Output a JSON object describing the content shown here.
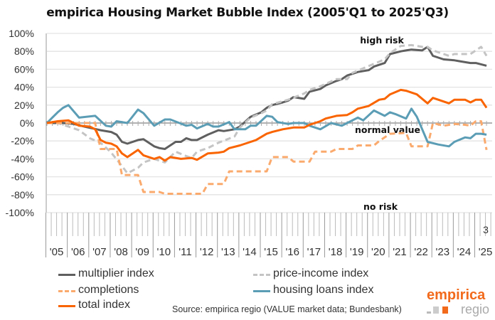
{
  "chart_data": {
    "type": "line",
    "title": "empirica Housing Market Bubble Index (2005'Q1 to 2025'Q3)",
    "xlim": [
      2005.0,
      2025.5
    ],
    "ylim": [
      -100,
      100
    ],
    "y_ticks": [
      "100%",
      "80%",
      "60%",
      "40%",
      "20%",
      "0%",
      "-20%",
      "-40%",
      "-60%",
      "-80%",
      "-100%"
    ],
    "x_ticks": [
      "'05",
      "'06",
      "'07",
      "'08",
      "'09",
      "'10",
      "'11",
      "'12",
      "'13",
      "'14",
      "'15",
      "'16",
      "'17",
      "'18",
      "'19",
      "'20",
      "'21",
      "'22",
      "'23",
      "'24",
      "'25"
    ],
    "last_quarter_label": "3",
    "grid": true,
    "legend_position": "bottom",
    "annotations": {
      "high": "high risk",
      "normal": "normal value",
      "low": "no risk"
    },
    "series": [
      {
        "name": "multiplier index",
        "color": "#5f5f5f",
        "dash": false,
        "points": [
          [
            2005,
            0
          ],
          [
            2005.75,
            0
          ],
          [
            2006.25,
            -1
          ],
          [
            2006.75,
            -4
          ],
          [
            2007.5,
            -8
          ],
          [
            2008,
            -10
          ],
          [
            2008.25,
            -13
          ],
          [
            2008.5,
            -21
          ],
          [
            2008.75,
            -23
          ],
          [
            2009.25,
            -19
          ],
          [
            2009.5,
            -18
          ],
          [
            2010,
            -26
          ],
          [
            2010.25,
            -28
          ],
          [
            2010.5,
            -29
          ],
          [
            2011,
            -21
          ],
          [
            2011.25,
            -21
          ],
          [
            2011.5,
            -17
          ],
          [
            2011.75,
            -19
          ],
          [
            2012,
            -19
          ],
          [
            2012.5,
            -13
          ],
          [
            2013,
            -8
          ],
          [
            2013.25,
            -9
          ],
          [
            2013.75,
            -7
          ],
          [
            2014,
            -4
          ],
          [
            2014.5,
            7
          ],
          [
            2015,
            12
          ],
          [
            2015.25,
            17
          ],
          [
            2015.5,
            20
          ],
          [
            2016,
            23
          ],
          [
            2016.25,
            25
          ],
          [
            2016.5,
            29
          ],
          [
            2017,
            27
          ],
          [
            2017.25,
            35
          ],
          [
            2017.75,
            38
          ],
          [
            2018,
            42
          ],
          [
            2018.5,
            47
          ],
          [
            2018.75,
            49
          ],
          [
            2019,
            53
          ],
          [
            2019.5,
            57
          ],
          [
            2020,
            59
          ],
          [
            2020.25,
            63
          ],
          [
            2020.75,
            67
          ],
          [
            2021,
            77
          ],
          [
            2021.5,
            80
          ],
          [
            2021.75,
            81
          ],
          [
            2022,
            82
          ],
          [
            2022.5,
            81
          ],
          [
            2022.75,
            85
          ],
          [
            2023,
            75
          ],
          [
            2023.5,
            71
          ],
          [
            2024,
            70
          ],
          [
            2024.25,
            69
          ],
          [
            2024.75,
            67
          ],
          [
            2025,
            67
          ],
          [
            2025.5,
            64
          ]
        ]
      },
      {
        "name": "price-income index",
        "color": "#c4c4c4",
        "dash": true,
        "points": [
          [
            2005,
            0
          ],
          [
            2005.5,
            0
          ],
          [
            2006,
            -4
          ],
          [
            2006.5,
            -8
          ],
          [
            2007,
            -17
          ],
          [
            2007.5,
            -22
          ],
          [
            2008,
            -33
          ],
          [
            2008.5,
            -48
          ],
          [
            2008.75,
            -56
          ],
          [
            2009.25,
            -50
          ],
          [
            2009.5,
            -44
          ],
          [
            2010,
            -40
          ],
          [
            2010.5,
            -44
          ],
          [
            2011,
            -32
          ],
          [
            2011.5,
            -37
          ],
          [
            2011.75,
            -39
          ],
          [
            2012,
            -32
          ],
          [
            2012.5,
            -28
          ],
          [
            2013,
            -22
          ],
          [
            2013.75,
            -15
          ],
          [
            2014,
            -5
          ],
          [
            2014.5,
            6
          ],
          [
            2015,
            11
          ],
          [
            2015.25,
            14
          ],
          [
            2015.5,
            21
          ],
          [
            2016.25,
            26
          ],
          [
            2017,
            33
          ],
          [
            2017.25,
            37
          ],
          [
            2017.75,
            41
          ],
          [
            2018.5,
            49
          ],
          [
            2019,
            49
          ],
          [
            2019.25,
            56
          ],
          [
            2019.75,
            61
          ],
          [
            2020.25,
            66
          ],
          [
            2020.75,
            71
          ],
          [
            2021,
            78
          ],
          [
            2021.5,
            86
          ],
          [
            2022,
            87
          ],
          [
            2022.5,
            85
          ],
          [
            2022.75,
            85
          ],
          [
            2023,
            81
          ],
          [
            2023.75,
            75
          ],
          [
            2024,
            77
          ],
          [
            2024.75,
            77
          ],
          [
            2025,
            81
          ],
          [
            2025.25,
            85
          ],
          [
            2025.5,
            75
          ]
        ]
      },
      {
        "name": "completions",
        "color": "#fbaa6e",
        "dash": true,
        "points": [
          [
            2005,
            0
          ],
          [
            2007.25,
            0
          ],
          [
            2007.5,
            -29
          ],
          [
            2008.25,
            -29
          ],
          [
            2008.5,
            -58
          ],
          [
            2009.25,
            -58
          ],
          [
            2009.5,
            -77
          ],
          [
            2010.25,
            -77
          ],
          [
            2010.5,
            -79
          ],
          [
            2012.25,
            -79
          ],
          [
            2012.5,
            -68
          ],
          [
            2013.25,
            -68
          ],
          [
            2013.5,
            -54
          ],
          [
            2015.25,
            -54
          ],
          [
            2015.5,
            -38
          ],
          [
            2016.25,
            -38
          ],
          [
            2016.5,
            -43
          ],
          [
            2017.25,
            -43
          ],
          [
            2017.5,
            -32
          ],
          [
            2018.25,
            -32
          ],
          [
            2018.5,
            -29
          ],
          [
            2019.25,
            -29
          ],
          [
            2019.5,
            -25
          ],
          [
            2020.25,
            -25
          ],
          [
            2020.5,
            -20
          ],
          [
            2021,
            -12
          ],
          [
            2021.75,
            -11
          ],
          [
            2022,
            -26
          ],
          [
            2022.75,
            -26
          ],
          [
            2023,
            0
          ],
          [
            2023.5,
            -3
          ],
          [
            2024,
            -1
          ],
          [
            2024.5,
            -2
          ],
          [
            2024.75,
            -3
          ],
          [
            2025,
            2
          ],
          [
            2025.25,
            2
          ],
          [
            2025.5,
            -30
          ]
        ]
      },
      {
        "name": "housing loans index",
        "color": "#5b9db5",
        "dash": false,
        "points": [
          [
            2005,
            0
          ],
          [
            2005.25,
            6
          ],
          [
            2005.5,
            12
          ],
          [
            2005.75,
            17
          ],
          [
            2006,
            20
          ],
          [
            2006.5,
            6
          ],
          [
            2007.25,
            8
          ],
          [
            2007.75,
            -3
          ],
          [
            2008,
            -4
          ],
          [
            2008.25,
            2
          ],
          [
            2008.75,
            0
          ],
          [
            2009.25,
            15
          ],
          [
            2009.5,
            11
          ],
          [
            2010,
            -3
          ],
          [
            2010.5,
            4
          ],
          [
            2010.75,
            4
          ],
          [
            2011.5,
            -3
          ],
          [
            2011.75,
            -2
          ],
          [
            2012,
            -6
          ],
          [
            2012.5,
            -1
          ],
          [
            2012.75,
            -4
          ],
          [
            2013,
            -4
          ],
          [
            2013.5,
            1
          ],
          [
            2013.75,
            -7
          ],
          [
            2014.25,
            -7
          ],
          [
            2014.5,
            -3
          ],
          [
            2014.75,
            -3
          ],
          [
            2015.25,
            8
          ],
          [
            2015.5,
            7
          ],
          [
            2015.75,
            1
          ],
          [
            2016.25,
            -1
          ],
          [
            2016.5,
            0
          ],
          [
            2017,
            0
          ],
          [
            2017.25,
            -3
          ],
          [
            2017.75,
            -7
          ],
          [
            2018.25,
            0
          ],
          [
            2018.75,
            -3
          ],
          [
            2019,
            0
          ],
          [
            2019.5,
            6
          ],
          [
            2019.75,
            3
          ],
          [
            2020.25,
            14
          ],
          [
            2020.75,
            8
          ],
          [
            2021,
            12
          ],
          [
            2021.25,
            10
          ],
          [
            2021.75,
            5
          ],
          [
            2022,
            16
          ],
          [
            2022.25,
            7
          ],
          [
            2022.75,
            -21
          ],
          [
            2023.25,
            -24
          ],
          [
            2023.75,
            -26
          ],
          [
            2024,
            -21
          ],
          [
            2024.5,
            -16
          ],
          [
            2024.75,
            -17
          ],
          [
            2025,
            -12
          ],
          [
            2025.25,
            -12
          ],
          [
            2025.5,
            -13
          ]
        ]
      },
      {
        "name": "total index",
        "color": "#fa6400",
        "dash": false,
        "points": [
          [
            2005,
            0
          ],
          [
            2005.5,
            2
          ],
          [
            2006,
            3
          ],
          [
            2006.5,
            -3
          ],
          [
            2007,
            -4
          ],
          [
            2007.25,
            -7
          ],
          [
            2007.5,
            -19
          ],
          [
            2007.75,
            -22
          ],
          [
            2008,
            -23
          ],
          [
            2008.25,
            -26
          ],
          [
            2008.5,
            -34
          ],
          [
            2008.75,
            -38
          ],
          [
            2009.25,
            -30
          ],
          [
            2009.5,
            -36
          ],
          [
            2010,
            -40
          ],
          [
            2010.25,
            -38
          ],
          [
            2010.5,
            -42
          ],
          [
            2010.75,
            -38
          ],
          [
            2011.25,
            -40
          ],
          [
            2011.75,
            -39
          ],
          [
            2012,
            -41
          ],
          [
            2012.5,
            -34
          ],
          [
            2013,
            -33
          ],
          [
            2013.25,
            -32
          ],
          [
            2013.5,
            -28
          ],
          [
            2014,
            -25
          ],
          [
            2014.5,
            -21
          ],
          [
            2014.75,
            -19
          ],
          [
            2015.25,
            -12
          ],
          [
            2015.5,
            -10
          ],
          [
            2016,
            -7
          ],
          [
            2016.5,
            -5
          ],
          [
            2017,
            -5
          ],
          [
            2017.25,
            -2
          ],
          [
            2017.75,
            2
          ],
          [
            2018,
            5
          ],
          [
            2018.5,
            8
          ],
          [
            2019,
            9
          ],
          [
            2019.25,
            12
          ],
          [
            2019.5,
            16
          ],
          [
            2020,
            19
          ],
          [
            2020.5,
            26
          ],
          [
            2020.75,
            27
          ],
          [
            2021,
            32
          ],
          [
            2021.5,
            37
          ],
          [
            2021.75,
            36
          ],
          [
            2022.25,
            32
          ],
          [
            2022.75,
            22
          ],
          [
            2023,
            28
          ],
          [
            2023.25,
            26
          ],
          [
            2023.75,
            22
          ],
          [
            2024,
            26
          ],
          [
            2024.5,
            26
          ],
          [
            2024.75,
            23
          ],
          [
            2025,
            26
          ],
          [
            2025.25,
            26
          ],
          [
            2025.5,
            17
          ]
        ]
      }
    ]
  },
  "source": "Source: empirica regio (VALUE market data; Bundesbank)",
  "logo": {
    "brand": "empirica",
    "sub": "regio"
  }
}
